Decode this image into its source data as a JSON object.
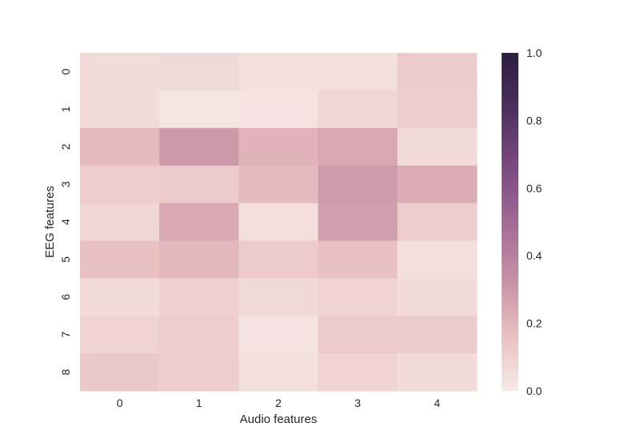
{
  "chart_data": {
    "type": "heatmap",
    "xlabel": "Audio features",
    "ylabel": "EEG features",
    "x_categories": [
      "0",
      "1",
      "2",
      "3",
      "4"
    ],
    "y_categories": [
      "0",
      "1",
      "2",
      "3",
      "4",
      "5",
      "6",
      "7",
      "8"
    ],
    "values": [
      [
        0.06,
        0.07,
        0.04,
        0.04,
        0.12
      ],
      [
        0.06,
        0.02,
        0.03,
        0.08,
        0.11
      ],
      [
        0.18,
        0.3,
        0.21,
        0.25,
        0.06
      ],
      [
        0.11,
        0.12,
        0.18,
        0.29,
        0.23
      ],
      [
        0.08,
        0.25,
        0.05,
        0.28,
        0.11
      ],
      [
        0.16,
        0.19,
        0.12,
        0.16,
        0.04
      ],
      [
        0.06,
        0.1,
        0.07,
        0.09,
        0.06
      ],
      [
        0.09,
        0.11,
        0.03,
        0.12,
        0.12
      ],
      [
        0.13,
        0.11,
        0.04,
        0.09,
        0.06
      ]
    ],
    "vmin": 0.0,
    "vmax": 1.0,
    "colorbar_ticks": [
      "0.0",
      "0.2",
      "0.4",
      "0.6",
      "0.8",
      "1.0"
    ],
    "colormap": {
      "low_color": "#f7ebe7",
      "high_color": "#2d1e3e",
      "stops": [
        "#f7ebe7",
        "#e8bfbf",
        "#c58fa6",
        "#a26a95",
        "#7a4a80",
        "#4d3060",
        "#2d1e3e"
      ]
    }
  }
}
